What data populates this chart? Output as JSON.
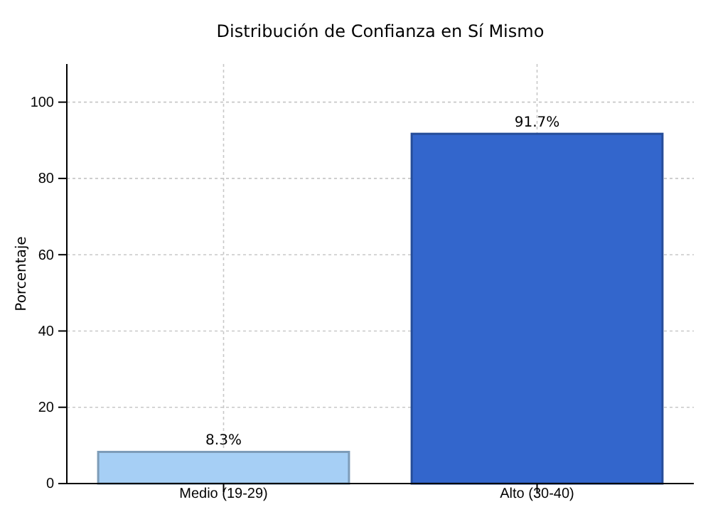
{
  "chart_data": {
    "type": "bar",
    "title": "Distribución de Confianza en Sí Mismo",
    "ylabel": "Porcentaje",
    "categories": [
      "Medio (19-29)",
      "Alto (30-40)"
    ],
    "values": [
      8.3,
      91.7
    ],
    "colors": [
      "#a6cff5",
      "#3366cc"
    ],
    "value_labels": [
      "8.3%",
      "91.7%"
    ],
    "ylim": [
      0,
      110
    ],
    "yticks": [
      0,
      20,
      40,
      60,
      80,
      100
    ],
    "grid": true
  }
}
